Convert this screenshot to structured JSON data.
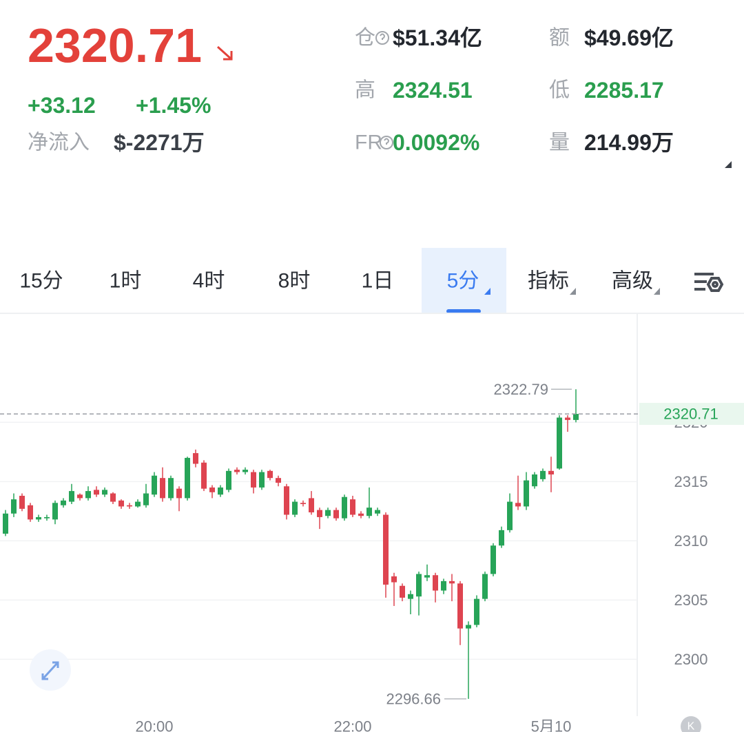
{
  "header": {
    "price": "2320.71",
    "change": "+33.12",
    "change_pct": "+1.45%",
    "netflow_label": "净流入",
    "netflow": "$-2271万"
  },
  "stats": [
    {
      "label": "仓",
      "value": "$51.34亿",
      "tone": "dark"
    },
    {
      "label": "额",
      "value": "$49.69亿",
      "tone": "dark"
    },
    {
      "label": "高",
      "value": "2324.51",
      "tone": "green"
    },
    {
      "label": "低",
      "value": "2285.17",
      "tone": "green"
    },
    {
      "label": "FR",
      "value": "0.0092%",
      "tone": "green"
    },
    {
      "label": "量",
      "value": "214.99万",
      "tone": "dark"
    }
  ],
  "tabs": [
    "15分",
    "1时",
    "4时",
    "8时",
    "1日",
    "5分",
    "指标",
    "高级"
  ],
  "selected_tab": 5,
  "corner_badge": "K",
  "chart_data": {
    "type": "candlestick",
    "categories": [
      null,
      null,
      null,
      null,
      null,
      null,
      null,
      null,
      null,
      null,
      null,
      null,
      null,
      null,
      null,
      null,
      null,
      null,
      "20:00",
      null,
      null,
      null,
      null,
      null,
      null,
      null,
      null,
      null,
      null,
      null,
      null,
      null,
      null,
      null,
      null,
      null,
      null,
      null,
      null,
      null,
      null,
      null,
      "22:00",
      null,
      null,
      null,
      null,
      null,
      null,
      null,
      null,
      null,
      null,
      null,
      null,
      null,
      null,
      null,
      null,
      null,
      null,
      null,
      null,
      null,
      null,
      null,
      "5月10",
      null,
      null,
      null
    ],
    "open": [
      2310.6,
      2312.3,
      2313.8,
      2313,
      2311.8,
      2311.9,
      2311.8,
      2313,
      2313.3,
      2313.9,
      2313.6,
      2314.3,
      2313.9,
      2314,
      2313.4,
      2313,
      2312.9,
      2313,
      2313.9,
      2315.3,
      2313.6,
      2314.4,
      2313.6,
      2317.4,
      2316.6,
      2314.5,
      2313.9,
      2314.3,
      2316,
      2315.8,
      2315.8,
      2314.5,
      2315.9,
      2315.3,
      2314.6,
      2312.2,
      2313.2,
      2313.6,
      2312.6,
      2312.1,
      2312.6,
      2311.9,
      2313.5,
      2312.3,
      2312.1,
      2312.3,
      2312.2,
      2307,
      2306.2,
      2305.1,
      2305.3,
      2306.9,
      2307.1,
      2305.8,
      2306.6,
      2306.4,
      2302.6,
      2302.9,
      2305.1,
      2307.2,
      2309.6,
      2310.9,
      2313.2,
      2312.9,
      2314.6,
      2315.2,
      2315.9,
      2316.1,
      2320.4,
      2320.2
    ],
    "high": [
      2312.6,
      2314,
      2314,
      2313.2,
      2312.2,
      2312.2,
      2313.4,
      2313.6,
      2314.8,
      2314,
      2314.6,
      2314.6,
      2314.5,
      2314.1,
      2313.5,
      2313.2,
      2313.5,
      2314.8,
      2315.8,
      2316.2,
      2315.5,
      2314.6,
      2317.1,
      2317.7,
      2316.8,
      2314.7,
      2314.7,
      2316.1,
      2316.2,
      2316.2,
      2316,
      2316,
      2316,
      2315.5,
      2314.8,
      2313.5,
      2313.4,
      2314.2,
      2312.8,
      2312.8,
      2312.8,
      2313.9,
      2313.8,
      2312.5,
      2314.5,
      2312.8,
      2312.4,
      2307.3,
      2306.4,
      2305.8,
      2307.4,
      2308,
      2307.3,
      2306.8,
      2307.2,
      2306.6,
      2303.2,
      2305.4,
      2307.4,
      2309.8,
      2311.2,
      2314,
      2315.5,
      2315.8,
      2315.8,
      2316.1,
      2317.1,
      2320.6,
      2320.6,
      2322.79
    ],
    "low": [
      2310.4,
      2312,
      2312.5,
      2311.6,
      2311.6,
      2311.7,
      2311.4,
      2312.8,
      2313.1,
      2313.4,
      2313.4,
      2313.7,
      2313.7,
      2313.1,
      2312.7,
      2312.7,
      2312.8,
      2312.8,
      2313.7,
      2313.3,
      2313.4,
      2312.5,
      2313.4,
      2316.2,
      2314.2,
      2313.6,
      2313.7,
      2314.1,
      2315.6,
      2315.6,
      2314,
      2314.3,
      2315.1,
      2314.6,
      2311.8,
      2312,
      2312.9,
      2312.2,
      2311,
      2311.9,
      2311.7,
      2311.7,
      2312,
      2311.9,
      2311.9,
      2312.1,
      2305.2,
      2304.5,
      2304.9,
      2303.8,
      2303.7,
      2306.6,
      2304.8,
      2305.5,
      2304.9,
      2301.2,
      2296.66,
      2302.7,
      2304.9,
      2307,
      2309.4,
      2310.7,
      2312.6,
      2312.6,
      2314.4,
      2315,
      2314.1,
      2316,
      2319.2,
      2320
    ],
    "close": [
      2312.3,
      2313.5,
      2312.7,
      2311.8,
      2312,
      2312,
      2313.2,
      2313.4,
      2314.2,
      2313.6,
      2314.2,
      2313.9,
      2314.3,
      2313.3,
      2312.9,
      2312.9,
      2313.3,
      2314,
      2315.5,
      2313.6,
      2315.3,
      2313.6,
      2317,
      2316.5,
      2314.4,
      2314.1,
      2314.5,
      2315.9,
      2315.8,
      2316,
      2314.5,
      2315.8,
      2315.3,
      2314.9,
      2312.2,
      2313.3,
      2313.1,
      2312.4,
      2312,
      2312.6,
      2311.9,
      2313.7,
      2312.2,
      2312.1,
      2312.8,
      2312.6,
      2306.3,
      2306.5,
      2305.2,
      2305.5,
      2307.2,
      2307.1,
      2305.8,
      2306.6,
      2306.4,
      2302.6,
      2302.9,
      2305.1,
      2307.2,
      2309.6,
      2310.9,
      2313.3,
      2312.9,
      2315.1,
      2315.6,
      2315.9,
      2315.6,
      2320.4,
      2320.2,
      2320.71
    ],
    "up_color": "#27a458",
    "down_color": "#de4450",
    "ylim": [
      2295.2,
      2329.2
    ],
    "yticks": [
      2300,
      2305,
      2310,
      2315,
      2320
    ],
    "grid": true
  }
}
